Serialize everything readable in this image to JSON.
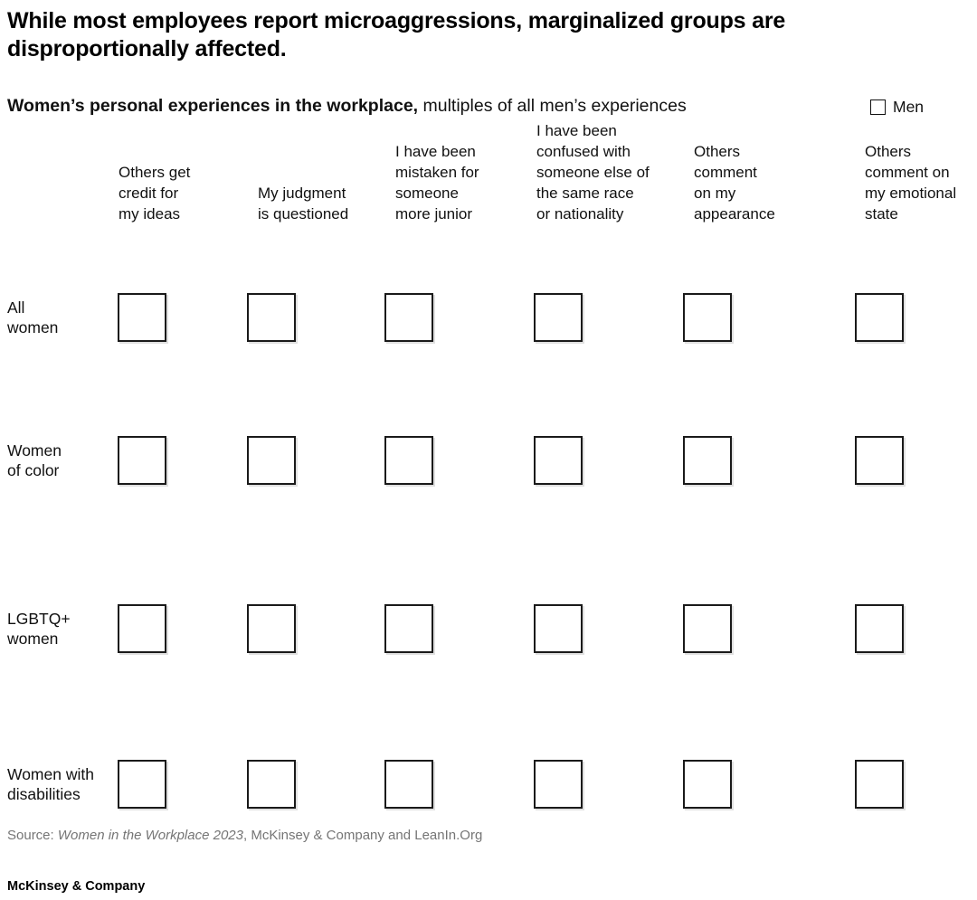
{
  "title": "While most employees report microaggressions, marginalized groups are disproportionally affected.",
  "subtitle": {
    "bold": "Women’s personal experiences in the workplace,",
    "regular": " multiples of all men’s experiences"
  },
  "legend": {
    "label": "Men",
    "marker": "outlined-square"
  },
  "chart_data": {
    "type": "table",
    "title": "While most employees report microaggressions, marginalized groups are disproportionally affected.",
    "subtitle": "Women’s personal experiences in the workplace, multiples of all men’s experiences",
    "legend_entries": [
      {
        "label": "Men",
        "marker": "outlined-square"
      }
    ],
    "columns": [
      {
        "label": "Others get credit for my ideas",
        "lines": [
          "Others get",
          "credit for",
          "my ideas"
        ]
      },
      {
        "label": "My judgment is questioned",
        "lines": [
          "My judgment",
          "is questioned"
        ]
      },
      {
        "label": "I have been mistaken for someone more junior",
        "lines": [
          "I have been",
          "mistaken for",
          "someone",
          "more junior"
        ]
      },
      {
        "label": "I have been confused with someone else of the same race or nationality",
        "lines": [
          "I have been",
          "confused with",
          "someone else of",
          "the same race",
          "or nationality"
        ]
      },
      {
        "label": "Others comment on my appearance",
        "lines": [
          "Others",
          "comment",
          "on my",
          "appearance"
        ]
      },
      {
        "label": "Others comment on my emotional state",
        "lines": [
          "Others",
          "comment on",
          "my emotional",
          "state"
        ]
      }
    ],
    "rows": [
      {
        "label": "All women",
        "lines": [
          "All",
          "women"
        ]
      },
      {
        "label": "Women of color",
        "lines": [
          "Women",
          "of color"
        ]
      },
      {
        "label": "LGBTQ+ women",
        "lines": [
          "LGBTQ+",
          "women"
        ]
      },
      {
        "label": "Women with disabilities",
        "lines": [
          "Women with",
          "disabilities"
        ]
      }
    ],
    "cell_display": "one outlined baseline square per cell (men = 1x); no numeric multiples shown",
    "values": [
      [
        1,
        1,
        1,
        1,
        1,
        1
      ],
      [
        1,
        1,
        1,
        1,
        1,
        1
      ],
      [
        1,
        1,
        1,
        1,
        1,
        1
      ],
      [
        1,
        1,
        1,
        1,
        1,
        1
      ]
    ]
  },
  "source": {
    "prefix": "Source: ",
    "italic": "Women in the Workplace 2023",
    "suffix": ", McKinsey & Company and LeanIn.Org"
  },
  "footer": "McKinsey & Company",
  "colors": {
    "box_border": "#1a1a1a",
    "text": "#000000",
    "muted_text": "#757575",
    "background": "#ffffff"
  }
}
